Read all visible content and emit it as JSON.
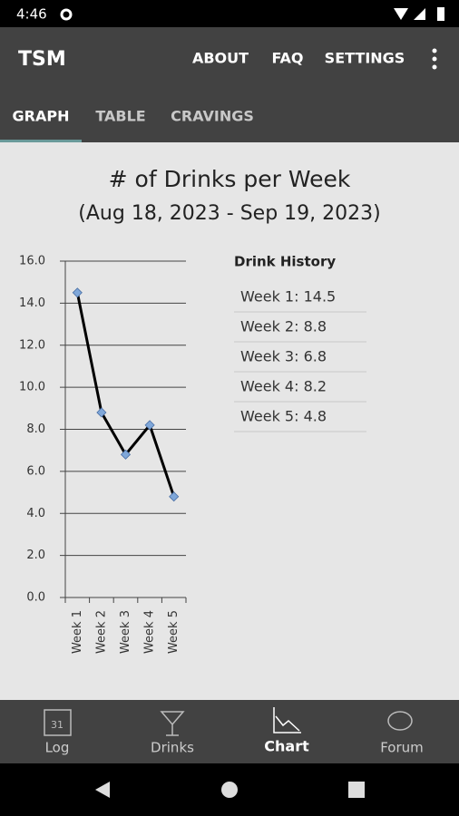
{
  "status_bar": {
    "time": "4:46"
  },
  "app_bar": {
    "title": "TSM",
    "menu": [
      "ABOUT",
      "FAQ",
      "SETTINGS"
    ]
  },
  "tabs": [
    "GRAPH",
    "TABLE",
    "CRAVINGS"
  ],
  "chart_data": {
    "type": "line",
    "title": "# of Drinks per Week",
    "subtitle": "(Aug 18, 2023 - Sep 19, 2023)",
    "categories": [
      "Week 1",
      "Week 2",
      "Week 3",
      "Week 4",
      "Week 5"
    ],
    "values": [
      14.5,
      8.8,
      6.8,
      8.2,
      4.8
    ],
    "color": "#000000",
    "marker_color": "#7fa7d9",
    "ylim": [
      0,
      16
    ],
    "yticks": [
      {
        "value": 0,
        "label": "0.0"
      },
      {
        "value": 2,
        "label": "2.0"
      },
      {
        "value": 4,
        "label": "4.0"
      },
      {
        "value": 6,
        "label": "6.0"
      },
      {
        "value": 8,
        "label": "8.0"
      },
      {
        "value": 10,
        "label": "10.0"
      },
      {
        "value": 12,
        "label": "12.0"
      },
      {
        "value": 14,
        "label": "14.0"
      },
      {
        "value": 16,
        "label": "16.0"
      }
    ],
    "grid": true
  },
  "history": {
    "title": "Drink History",
    "items": [
      "Week 1: 14.5",
      "Week 2: 8.8",
      "Week 3: 6.8",
      "Week 4: 8.2",
      "Week 5: 4.8"
    ]
  },
  "bottom_nav": {
    "calendar_day": "31",
    "items": [
      "Log",
      "Drinks",
      "Chart",
      "Forum"
    ]
  }
}
